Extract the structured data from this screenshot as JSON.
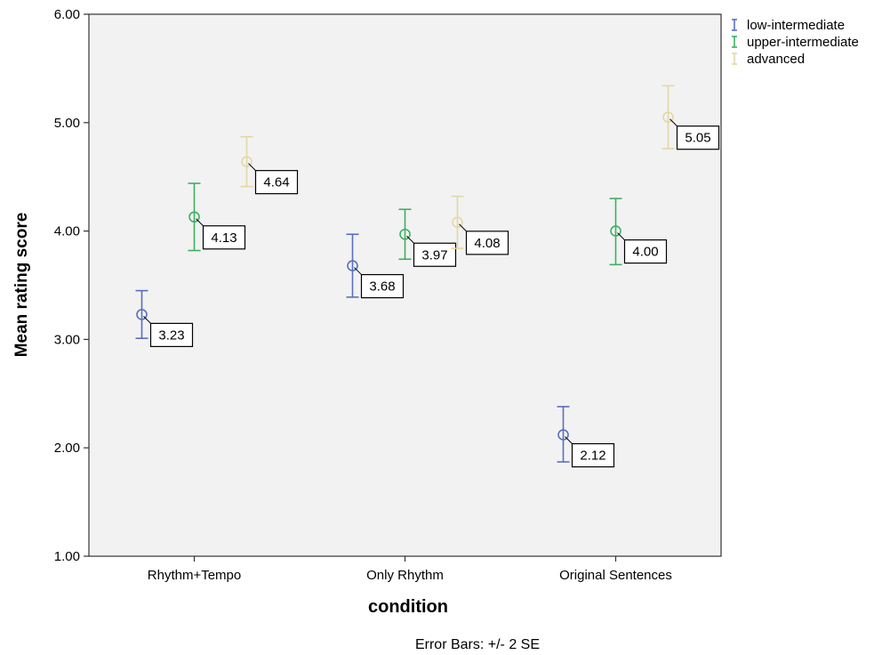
{
  "chart_data": {
    "type": "scatter",
    "variant": "error-bar",
    "categories": [
      "Rhythm+Tempo",
      "Only Rhythm",
      "Original Sentences"
    ],
    "xlabel": "condition",
    "ylabel": "Mean rating score",
    "ylim": [
      1,
      6
    ],
    "yticks": [
      "1.00",
      "2.00",
      "3.00",
      "4.00",
      "5.00",
      "6.00"
    ],
    "grid": false,
    "legend_position": "top-right",
    "note": "Error Bars: +/- 2 SE",
    "series": [
      {
        "name": "low-intermediate",
        "color": "#5a6fbe",
        "values": [
          3.23,
          3.68,
          2.12
        ],
        "labels": [
          "3.23",
          "3.68",
          "2.12"
        ],
        "error_low": [
          3.01,
          3.39,
          1.87
        ],
        "error_high": [
          3.45,
          3.97,
          2.38
        ]
      },
      {
        "name": "upper-intermediate",
        "color": "#3fae63",
        "values": [
          4.13,
          3.97,
          4.0
        ],
        "labels": [
          "4.13",
          "3.97",
          "4.00"
        ],
        "error_low": [
          3.82,
          3.74,
          3.69
        ],
        "error_high": [
          4.44,
          4.2,
          4.3
        ]
      },
      {
        "name": "advanced",
        "color": "#e3d7a5",
        "values": [
          4.64,
          4.08,
          5.05
        ],
        "labels": [
          "4.64",
          "4.08",
          "5.05"
        ],
        "error_low": [
          4.41,
          3.84,
          4.76
        ],
        "error_high": [
          4.87,
          4.32,
          5.34
        ]
      }
    ]
  }
}
